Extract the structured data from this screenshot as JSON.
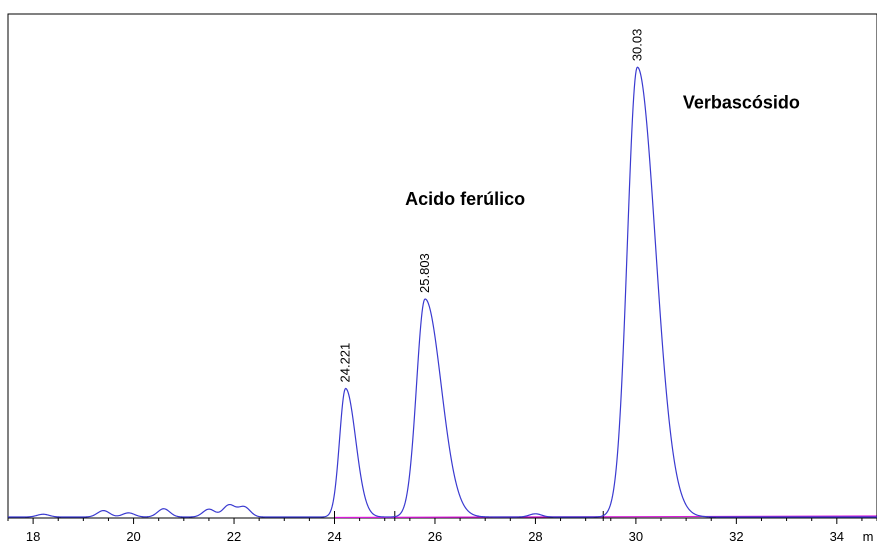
{
  "chart_data": {
    "type": "line",
    "x_axis": {
      "range": [
        17.5,
        34.8
      ],
      "ticks": [
        18,
        20,
        22,
        24,
        26,
        28,
        30,
        32,
        34
      ],
      "tick_labels": [
        "18",
        "20",
        "22",
        "24",
        "26",
        "28",
        "30",
        "32",
        "34"
      ],
      "unit_label": "m",
      "minor_tick_step": 0.5
    },
    "y_axis": {
      "range": [
        0,
        100
      ]
    },
    "baseline_color": "#d81bd8",
    "trace_color": "#3a3ad0",
    "peaks": [
      {
        "time": 24.221,
        "label": "24.221",
        "height": 28,
        "left_width": 0.12,
        "right_width": 0.2
      },
      {
        "time": 25.803,
        "label": "25.803",
        "height": 47.5,
        "left_width": 0.17,
        "right_width": 0.32
      },
      {
        "time": 30.03,
        "label": "30.03",
        "height": 98,
        "left_width": 0.2,
        "right_width": 0.36
      }
    ],
    "annotations": [
      {
        "text": "Acido ferúlico",
        "x": 26.6,
        "y": 68
      },
      {
        "text": "Verbascósido",
        "x": 32.1,
        "y": 89
      }
    ],
    "noise_bumps": [
      {
        "time": 18.2,
        "height": 0.6
      },
      {
        "time": 19.4,
        "height": 1.4
      },
      {
        "time": 19.9,
        "height": 0.9
      },
      {
        "time": 20.6,
        "height": 1.8
      },
      {
        "time": 21.5,
        "height": 1.7
      },
      {
        "time": 21.9,
        "height": 2.6
      },
      {
        "time": 22.2,
        "height": 2.2
      },
      {
        "time": 28.0,
        "height": 0.7
      }
    ],
    "integration_marks": [
      24.0,
      25.2,
      29.35,
      34.8
    ]
  }
}
